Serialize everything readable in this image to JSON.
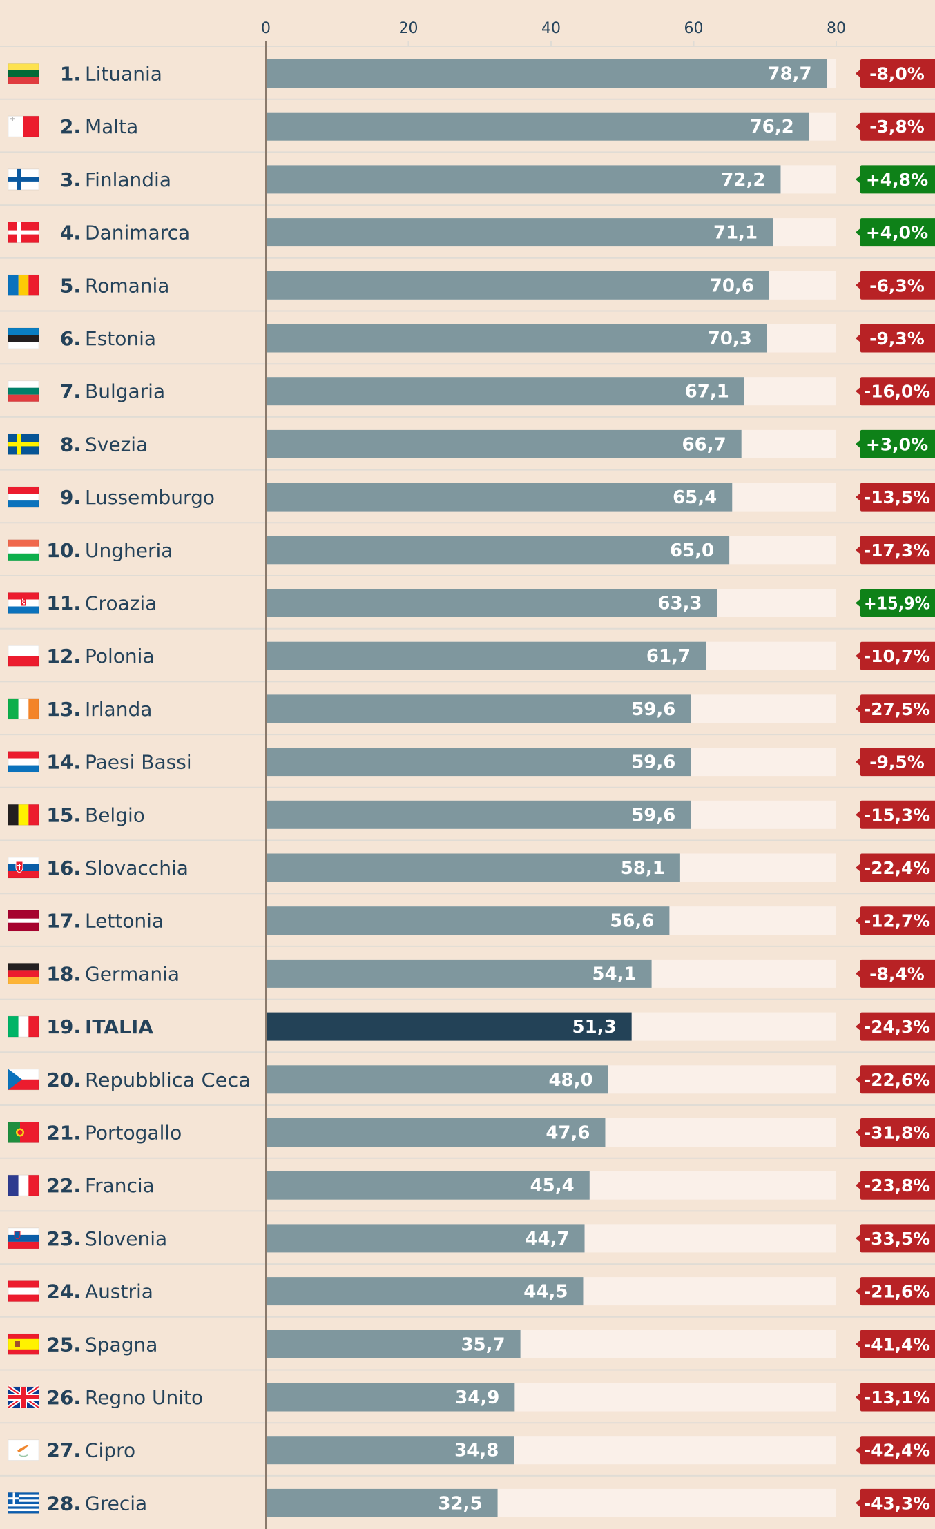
{
  "chart_data": {
    "type": "bar",
    "orientation": "horizontal",
    "title": "",
    "xlabel": "",
    "ylabel": "",
    "xlim": [
      0,
      80
    ],
    "x_ticks": [
      "0",
      "20",
      "40",
      "60",
      "80"
    ],
    "grid": false,
    "highlight": "ITALIA",
    "colors": {
      "background": "#f5e5d6",
      "bar": "#7f979e",
      "bar_highlight": "#234257",
      "track": "#faf0e9",
      "text": "#24425a",
      "separator": "#e0dcd5",
      "axis": "#8a7a6c",
      "badge_negative": "#b82225",
      "badge_positive": "#0e8118"
    },
    "rows": [
      {
        "rank": "1.",
        "name": "Lituania",
        "value": 78.7,
        "value_label": "78,7",
        "change": -8.0,
        "change_label": "-8,0%",
        "flag": "lithuania-flag"
      },
      {
        "rank": "2.",
        "name": "Malta",
        "value": 76.2,
        "value_label": "76,2",
        "change": -3.8,
        "change_label": "-3,8%",
        "flag": "malta-flag"
      },
      {
        "rank": "3.",
        "name": "Finlandia",
        "value": 72.2,
        "value_label": "72,2",
        "change": 4.8,
        "change_label": "+4,8%",
        "flag": "finland-flag"
      },
      {
        "rank": "4.",
        "name": "Danimarca",
        "value": 71.1,
        "value_label": "71,1",
        "change": 4.0,
        "change_label": "+4,0%",
        "flag": "denmark-flag"
      },
      {
        "rank": "5.",
        "name": "Romania",
        "value": 70.6,
        "value_label": "70,6",
        "change": -6.3,
        "change_label": "-6,3%",
        "flag": "romania-flag"
      },
      {
        "rank": "6.",
        "name": "Estonia",
        "value": 70.3,
        "value_label": "70,3",
        "change": -9.3,
        "change_label": "-9,3%",
        "flag": "estonia-flag"
      },
      {
        "rank": "7.",
        "name": "Bulgaria",
        "value": 67.1,
        "value_label": "67,1",
        "change": -16.0,
        "change_label": "-16,0%",
        "flag": "bulgaria-flag"
      },
      {
        "rank": "8.",
        "name": "Svezia",
        "value": 66.7,
        "value_label": "66,7",
        "change": 3.0,
        "change_label": "+3,0%",
        "flag": "sweden-flag"
      },
      {
        "rank": "9.",
        "name": "Lussemburgo",
        "value": 65.4,
        "value_label": "65,4",
        "change": -13.5,
        "change_label": "-13,5%",
        "flag": "luxembourg-flag"
      },
      {
        "rank": "10.",
        "name": "Ungheria",
        "value": 65.0,
        "value_label": "65,0",
        "change": -17.3,
        "change_label": "-17,3%",
        "flag": "hungary-flag"
      },
      {
        "rank": "11.",
        "name": "Croazia",
        "value": 63.3,
        "value_label": "63,3",
        "change": 15.9,
        "change_label": "+15,9%",
        "flag": "croatia-flag"
      },
      {
        "rank": "12.",
        "name": "Polonia",
        "value": 61.7,
        "value_label": "61,7",
        "change": -10.7,
        "change_label": "-10,7%",
        "flag": "poland-flag"
      },
      {
        "rank": "13.",
        "name": "Irlanda",
        "value": 59.6,
        "value_label": "59,6",
        "change": -27.5,
        "change_label": "-27,5%",
        "flag": "ireland-flag"
      },
      {
        "rank": "14.",
        "name": "Paesi Bassi",
        "value": 59.6,
        "value_label": "59,6",
        "change": -9.5,
        "change_label": "-9,5%",
        "flag": "netherlands-flag"
      },
      {
        "rank": "15.",
        "name": "Belgio",
        "value": 59.6,
        "value_label": "59,6",
        "change": -15.3,
        "change_label": "-15,3%",
        "flag": "belgium-flag"
      },
      {
        "rank": "16.",
        "name": "Slovacchia",
        "value": 58.1,
        "value_label": "58,1",
        "change": -22.4,
        "change_label": "-22,4%",
        "flag": "slovakia-flag"
      },
      {
        "rank": "17.",
        "name": "Lettonia",
        "value": 56.6,
        "value_label": "56,6",
        "change": -12.7,
        "change_label": "-12,7%",
        "flag": "latvia-flag"
      },
      {
        "rank": "18.",
        "name": "Germania",
        "value": 54.1,
        "value_label": "54,1",
        "change": -8.4,
        "change_label": "-8,4%",
        "flag": "germany-flag"
      },
      {
        "rank": "19.",
        "name": "ITALIA",
        "value": 51.3,
        "value_label": "51,3",
        "change": -24.3,
        "change_label": "-24,3%",
        "flag": "italy-flag",
        "highlight": true
      },
      {
        "rank": "20.",
        "name": "Repubblica Ceca",
        "value": 48.0,
        "value_label": "48,0",
        "change": -22.6,
        "change_label": "-22,6%",
        "flag": "czech-republic-flag"
      },
      {
        "rank": "21.",
        "name": "Portogallo",
        "value": 47.6,
        "value_label": "47,6",
        "change": -31.8,
        "change_label": "-31,8%",
        "flag": "portugal-flag"
      },
      {
        "rank": "22.",
        "name": "Francia",
        "value": 45.4,
        "value_label": "45,4",
        "change": -23.8,
        "change_label": "-23,8%",
        "flag": "france-flag"
      },
      {
        "rank": "23.",
        "name": "Slovenia",
        "value": 44.7,
        "value_label": "44,7",
        "change": -33.5,
        "change_label": "-33,5%",
        "flag": "slovenia-flag"
      },
      {
        "rank": "24.",
        "name": "Austria",
        "value": 44.5,
        "value_label": "44,5",
        "change": -21.6,
        "change_label": "-21,6%",
        "flag": "austria-flag"
      },
      {
        "rank": "25.",
        "name": "Spagna",
        "value": 35.7,
        "value_label": "35,7",
        "change": -41.4,
        "change_label": "-41,4%",
        "flag": "spain-flag"
      },
      {
        "rank": "26.",
        "name": "Regno Unito",
        "value": 34.9,
        "value_label": "34,9",
        "change": -13.1,
        "change_label": "-13,1%",
        "flag": "united-kingdom-flag"
      },
      {
        "rank": "27.",
        "name": "Cipro",
        "value": 34.8,
        "value_label": "34,8",
        "change": -42.4,
        "change_label": "-42,4%",
        "flag": "cyprus-flag"
      },
      {
        "rank": "28.",
        "name": "Grecia",
        "value": 32.5,
        "value_label": "32,5",
        "change": -43.3,
        "change_label": "-43,3%",
        "flag": "greece-flag"
      }
    ]
  }
}
